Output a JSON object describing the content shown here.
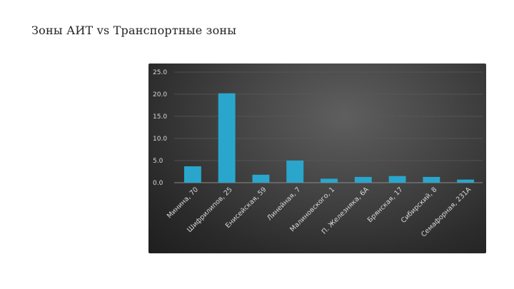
{
  "title": "Зоны АИТ vs Транспортные зоны",
  "colors": {
    "background": "#ffffff",
    "chart_background": "#3a3a3a",
    "bar": "#2aa6cc",
    "grid": "#5a5a5a",
    "text": "#d8d8d8"
  },
  "chart_data": {
    "type": "bar",
    "title": "",
    "xlabel": "",
    "ylabel": "",
    "categories": [
      "Минина, 70",
      "Шифрилипов, 25",
      "Енисейская, 59",
      "Линейная, 7",
      "Малиновского, 1",
      "П. Железняка, 6А",
      "Брянская, 17",
      "Сибирский, 8",
      "Семафорная, 231А"
    ],
    "values": [
      3.7,
      20.2,
      1.8,
      5.0,
      0.9,
      1.3,
      1.5,
      1.3,
      0.7
    ],
    "ylim": [
      0,
      25
    ],
    "yticks": [
      "0.0",
      "5.0",
      "10.0",
      "15.0",
      "20.0",
      "25.0"
    ],
    "grid": true,
    "legend": "none"
  }
}
